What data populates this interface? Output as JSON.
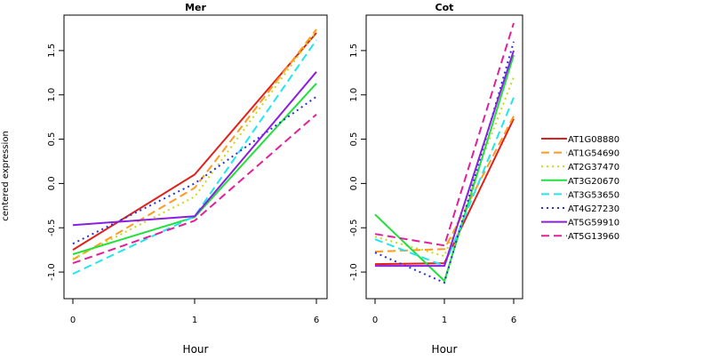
{
  "colors": {
    "AT1G08880": "#e0201b",
    "AT1G54690": "#ff9a1f",
    "AT2G37470": "#c8d918",
    "AT3G20670": "#21e03a",
    "AT3G53650": "#22e5ef",
    "AT4G27230": "#2630e0",
    "AT5G59910": "#8a1fe0",
    "AT5G13960": "#e0209a"
  },
  "chart_data": [
    {
      "type": "line",
      "title": "Mer",
      "xlabel": "Hour",
      "ylabel": "centered expression",
      "x": [
        "0",
        "1",
        "6"
      ],
      "yticks": [
        "-1.0",
        "-0.5",
        "0.0",
        "0.5",
        "1.0",
        "1.5"
      ],
      "ylim": [
        -1.2,
        1.8
      ],
      "series": [
        {
          "name": "AT1G08880",
          "values": [
            -0.75,
            0.1,
            1.7
          ],
          "dash": "solid"
        },
        {
          "name": "AT1G54690",
          "values": [
            -0.86,
            -0.05,
            1.74
          ],
          "dash": "dashed"
        },
        {
          "name": "AT2G37470",
          "values": [
            -0.85,
            -0.15,
            1.72
          ],
          "dash": "dotted"
        },
        {
          "name": "AT3G20670",
          "values": [
            -0.8,
            -0.38,
            1.13
          ],
          "dash": "solid"
        },
        {
          "name": "AT3G53650",
          "values": [
            -1.02,
            -0.37,
            1.62
          ],
          "dash": "dashed"
        },
        {
          "name": "AT4G27230",
          "values": [
            -0.68,
            0.0,
            0.98
          ],
          "dash": "dotted"
        },
        {
          "name": "AT5G59910",
          "values": [
            -0.47,
            -0.37,
            1.26
          ],
          "dash": "solid"
        },
        {
          "name": "AT5G13960",
          "values": [
            -0.9,
            -0.42,
            0.78
          ],
          "dash": "dashed"
        }
      ]
    },
    {
      "type": "line",
      "title": "Cot",
      "xlabel": "Hour",
      "ylabel": "",
      "x": [
        "0",
        "1",
        "6"
      ],
      "yticks": [
        "-1.0",
        "-0.5",
        "0.0",
        "0.5",
        "1.0",
        "1.5"
      ],
      "ylim": [
        -1.2,
        1.8
      ],
      "series": [
        {
          "name": "AT1G08880",
          "values": [
            -0.91,
            -0.9,
            0.73
          ],
          "dash": "solid"
        },
        {
          "name": "AT1G54690",
          "values": [
            -0.77,
            -0.74,
            0.76
          ],
          "dash": "dashed"
        },
        {
          "name": "AT2G37470",
          "values": [
            -0.6,
            -0.82,
            1.2
          ],
          "dash": "dotted"
        },
        {
          "name": "AT3G20670",
          "values": [
            -0.35,
            -1.1,
            1.45
          ],
          "dash": "solid"
        },
        {
          "name": "AT3G53650",
          "values": [
            -0.63,
            -0.93,
            0.97
          ],
          "dash": "dashed"
        },
        {
          "name": "AT4G27230",
          "values": [
            -0.78,
            -1.12,
            1.6
          ],
          "dash": "dotted"
        },
        {
          "name": "AT5G59910",
          "values": [
            -0.93,
            -0.93,
            1.5
          ],
          "dash": "solid"
        },
        {
          "name": "AT5G13960",
          "values": [
            -0.57,
            -0.7,
            1.81
          ],
          "dash": "dashed"
        }
      ]
    }
  ],
  "legend": {
    "position": "right",
    "entries": [
      "AT1G08880",
      "AT1G54690",
      "AT2G37470",
      "AT3G20670",
      "AT3G53650",
      "AT4G27230",
      "AT5G59910",
      "AT5G13960"
    ]
  }
}
